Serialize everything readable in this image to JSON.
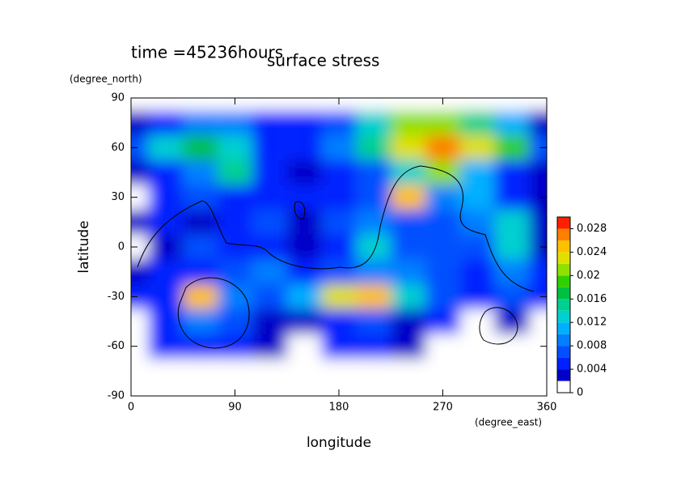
{
  "chart_data": {
    "type": "contour",
    "title": "surface stress",
    "subtitle": "time =45236hours",
    "x_label": "longitude",
    "y_label": "latitude",
    "x_unit": "(degree_east)",
    "y_unit": "(degree_north)",
    "x": [
      0,
      30,
      60,
      90,
      120,
      150,
      180,
      210,
      240,
      270,
      300,
      330,
      360
    ],
    "y": [
      90,
      75,
      60,
      45,
      30,
      15,
      0,
      -15,
      -30,
      -45,
      -60,
      -75,
      -90
    ],
    "values": [
      [
        0,
        0,
        0,
        0,
        0,
        0,
        0,
        0,
        0,
        0,
        0,
        0,
        0
      ],
      [
        0.003,
        0.005,
        0.008,
        0.008,
        0.005,
        0.004,
        0.006,
        0.012,
        0.02,
        0.02,
        0.015,
        0.01,
        0.003
      ],
      [
        0.006,
        0.012,
        0.016,
        0.012,
        0.005,
        0.004,
        0.008,
        0.014,
        0.022,
        0.026,
        0.022,
        0.018,
        0.006
      ],
      [
        0.003,
        0.005,
        0.008,
        0.014,
        0.004,
        0.003,
        0.005,
        0.006,
        0.012,
        0.02,
        0.01,
        0.004,
        0.003
      ],
      [
        0,
        0.004,
        0.006,
        0.005,
        0.004,
        0.005,
        0.004,
        0.006,
        0.024,
        0.008,
        0.01,
        0.004,
        0.003
      ],
      [
        0.003,
        0.004,
        0.002,
        0.004,
        0.006,
        0.003,
        0.006,
        0.008,
        0.006,
        0.006,
        0.008,
        0.012,
        0.003
      ],
      [
        0,
        0.003,
        0.006,
        0.004,
        0.004,
        0.003,
        0.005,
        0.012,
        0.006,
        0.006,
        0.006,
        0.012,
        0.003
      ],
      [
        0.003,
        0.004,
        0.005,
        0.006,
        0.008,
        0.005,
        0.006,
        0.008,
        0.008,
        0.006,
        0.005,
        0.008,
        0.004
      ],
      [
        0.004,
        0.005,
        0.024,
        0.008,
        0.006,
        0.01,
        0.022,
        0.024,
        0.012,
        0.006,
        0.005,
        0.006,
        0.004
      ],
      [
        0,
        0.005,
        0.008,
        0.006,
        0.003,
        0.003,
        0.004,
        0.006,
        0.003,
        0.004,
        0,
        0.003,
        0
      ],
      [
        0,
        0.004,
        0.005,
        0.004,
        0.003,
        0,
        0.004,
        0.005,
        0.003,
        0,
        0,
        0,
        0
      ],
      [
        0,
        0,
        0,
        0,
        0,
        0,
        0,
        0,
        0,
        0,
        0,
        0,
        0
      ],
      [
        0,
        0,
        0,
        0,
        0,
        0,
        0,
        0,
        0,
        0,
        0,
        0,
        0
      ]
    ],
    "xlim": [
      0,
      360
    ],
    "xticks": [
      0,
      90,
      180,
      270,
      360
    ],
    "ylim": [
      -90,
      90
    ],
    "yticks": [
      -90,
      -60,
      -30,
      0,
      30,
      60,
      90
    ],
    "clim": [
      0,
      0.03
    ],
    "cticks": [
      0,
      0.004,
      0.008,
      0.012,
      0.016,
      0.02,
      0.024,
      0.028
    ],
    "colors": [
      "#ffffff",
      "#0000c8",
      "#0020ff",
      "#0050ff",
      "#0080ff",
      "#00b0ff",
      "#00d0d0",
      "#00d090",
      "#00c040",
      "#30d000",
      "#90e000",
      "#e0e000",
      "#ffc000",
      "#ff8000",
      "#ff2000"
    ]
  }
}
